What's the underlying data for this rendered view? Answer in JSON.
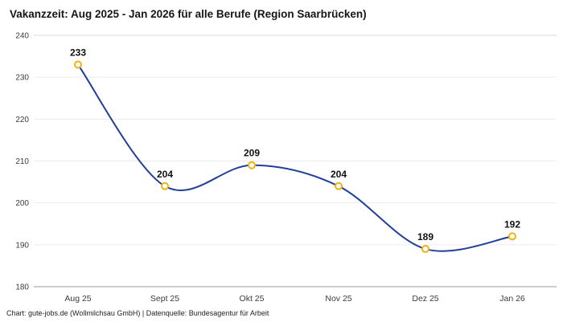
{
  "title": "Vakanzzeit: Aug 2025 - Jan 2026 für alle Berufe (Region Saarbrücken)",
  "footer": "Chart: gute-jobs.de (Wollmilchsau GmbH) | Datenquelle: Bundesagentur für Arbeit",
  "chart_data": {
    "type": "line",
    "title": "Vakanzzeit: Aug 2025 - Jan 2026 für alle Berufe (Region Saarbrücken)",
    "categories": [
      "Aug 25",
      "Sept 25",
      "Okt 25",
      "Nov 25",
      "Dez 25",
      "Jan 26"
    ],
    "values": [
      233,
      204,
      209,
      204,
      189,
      192
    ],
    "xlabel": "",
    "ylabel": "",
    "ylim": [
      180,
      240
    ],
    "yticks": [
      180,
      190,
      200,
      210,
      220,
      230,
      240
    ],
    "grid": true,
    "legend": "none",
    "line_color": "#20409a",
    "marker_fill": "#ffffff",
    "marker_stroke": "#eeb211",
    "value_label_color": "#111111",
    "tick_label_color": "#3c3c3c",
    "baseline_color": "#9a9a9a",
    "gridline_color": "#ededed",
    "top_gridline_color": "#d9d9d9"
  }
}
